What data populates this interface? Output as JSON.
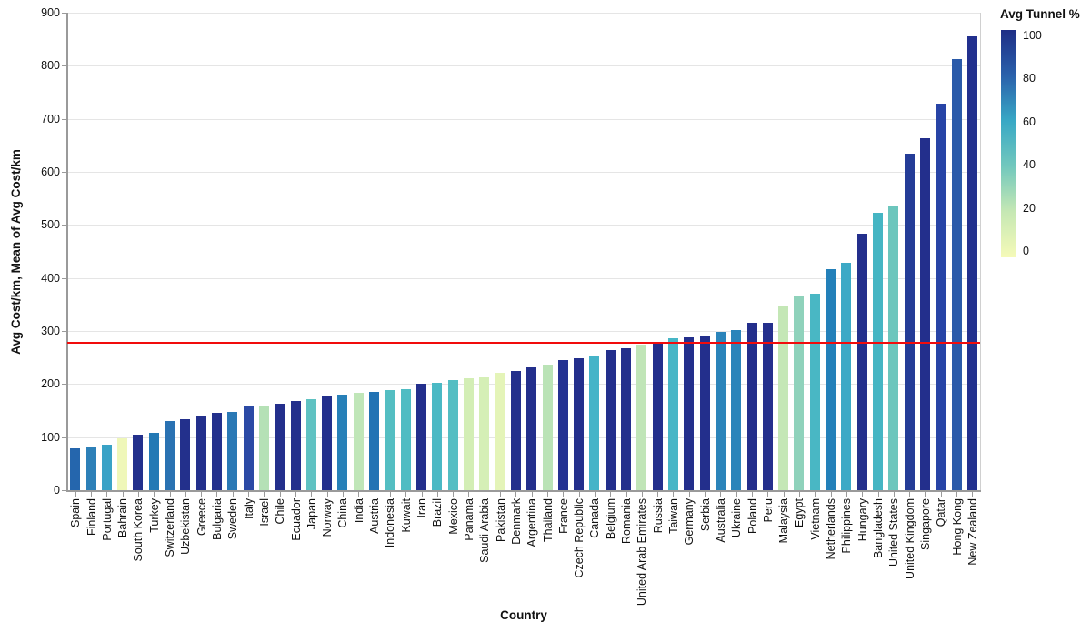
{
  "chart_data": {
    "type": "bar",
    "title": "",
    "y_axis": {
      "label": "Avg Cost/km, Mean of Avg Cost/km",
      "ticks": [
        0,
        100,
        200,
        300,
        400,
        500,
        600,
        700,
        800,
        900
      ],
      "range": [
        0,
        900
      ],
      "grid": true
    },
    "x_axis": {
      "label": "Country"
    },
    "categories": [
      "Spain",
      "Finland",
      "Portugal",
      "Bahrain",
      "South Korea",
      "Turkey",
      "Switzerland",
      "Uzbekistan",
      "Greece",
      "Bulgaria",
      "Sweden",
      "Italy",
      "Israel",
      "Chile",
      "Ecuador",
      "Japan",
      "Norway",
      "China",
      "India",
      "Austria",
      "Indonesia",
      "Kuwait",
      "Iran",
      "Brazil",
      "Mexico",
      "Panama",
      "Saudi Arabia",
      "Pakistan",
      "Denmark",
      "Argentina",
      "Thailand",
      "France",
      "Czech Republic",
      "Canada",
      "Belgium",
      "Romania",
      "United Arab Emirates",
      "Russia",
      "Taiwan",
      "Germany",
      "Serbia",
      "Australia",
      "Ukraine",
      "Poland",
      "Peru",
      "Malaysia",
      "Egypt",
      "Vietnam",
      "Netherlands",
      "Philippines",
      "Hungary",
      "Bangladesh",
      "United States",
      "United Kingdom",
      "Singapore",
      "Qatar",
      "Hong Kong",
      "New Zealand"
    ],
    "values": [
      79,
      80,
      86,
      97,
      105,
      108,
      130,
      133,
      141,
      146,
      148,
      158,
      160,
      163,
      168,
      171,
      177,
      180,
      183,
      185,
      189,
      190,
      200,
      202,
      207,
      211,
      212,
      222,
      225,
      232,
      236,
      245,
      248,
      254,
      264,
      268,
      274,
      276,
      286,
      288,
      290,
      298,
      302,
      315,
      316,
      348,
      367,
      371,
      416,
      428,
      483,
      523,
      537,
      634,
      663,
      728,
      812,
      856
    ],
    "bar_colors": [
      "#2566ad",
      "#2d80b8",
      "#39a2c6",
      "#eff7b9",
      "#23308c",
      "#2379b5",
      "#2a72b2",
      "#23308c",
      "#23308c",
      "#23308c",
      "#2a79b5",
      "#2b4aa5",
      "#b5e1b6",
      "#232f8c",
      "#232f8c",
      "#5fc2c2",
      "#232f8c",
      "#2780b8",
      "#c0e6b8",
      "#2273b4",
      "#54bec2",
      "#4fbcc3",
      "#232f8c",
      "#4ab9c4",
      "#54bec3",
      "#d3eeb5",
      "#d5efb6",
      "#e4f4b8",
      "#232f8c",
      "#232f8c",
      "#bae3b6",
      "#243292",
      "#232f8c",
      "#45b4c8",
      "#232f8c",
      "#232f8c",
      "#c0e5b7",
      "#232f8c",
      "#47b6c6",
      "#232f8c",
      "#232f8c",
      "#2b84ba",
      "#2b84ba",
      "#232e8b",
      "#242f8c",
      "#c4e7b6",
      "#8fd2bb",
      "#49b7c4",
      "#2380b9",
      "#3ca9c6",
      "#232f8c",
      "#45b5c3",
      "#6cc6bd",
      "#243c97",
      "#232f8c",
      "#2744a6",
      "#2a5aa9",
      "#22308e"
    ],
    "mean_line": {
      "value": 280,
      "color": "#f10c0c"
    },
    "legend": {
      "title": "Avg Tunnel %",
      "ticks": [
        100,
        80,
        60,
        40,
        20,
        0
      ],
      "gradient_stops": [
        {
          "pct": 0,
          "color": "#f5fab8"
        },
        {
          "pct": 20,
          "color": "#c6e8b4"
        },
        {
          "pct": 40,
          "color": "#72c8bd"
        },
        {
          "pct": 60,
          "color": "#38a8c5"
        },
        {
          "pct": 80,
          "color": "#2a61ab"
        },
        {
          "pct": 100,
          "color": "#1e2e86"
        }
      ]
    },
    "colors": {
      "grid": "#e5e5e5",
      "axis": "#9a9a9a",
      "text": "#111111"
    }
  }
}
